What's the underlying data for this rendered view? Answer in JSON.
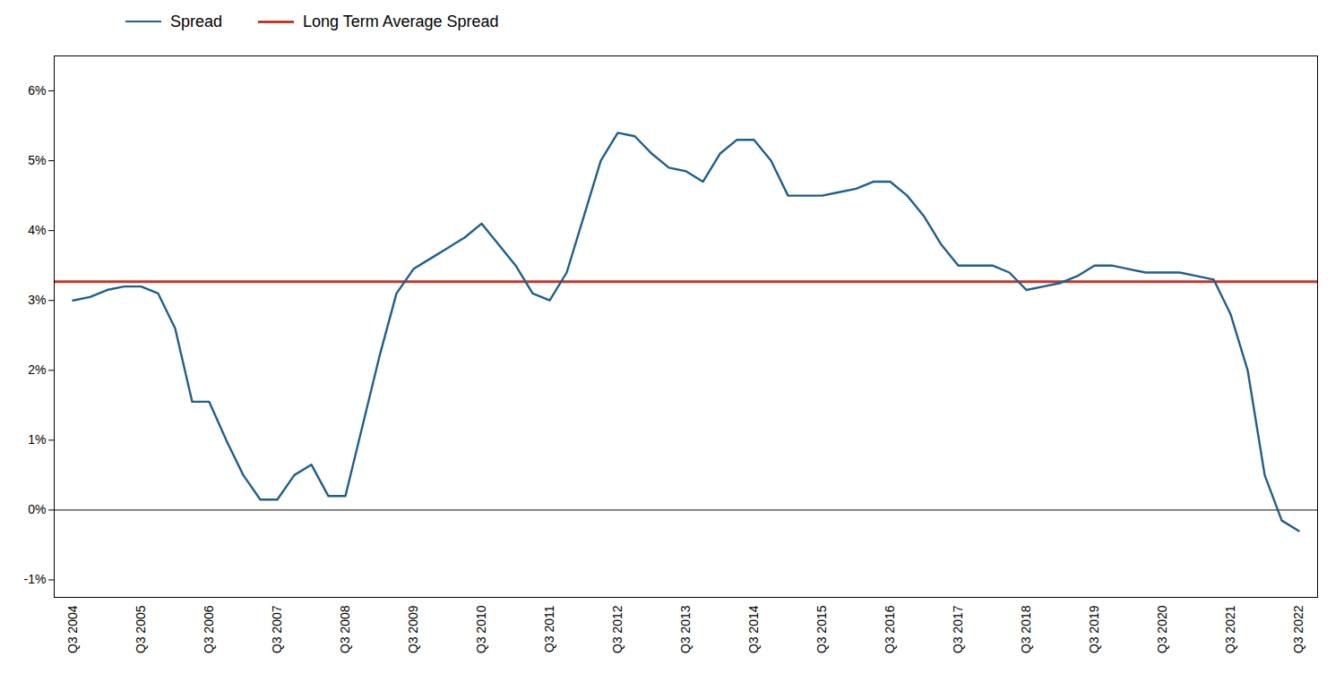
{
  "chart_data": {
    "type": "line",
    "categories": [
      "Q3 2004",
      null,
      null,
      null,
      "Q3 2005",
      null,
      null,
      null,
      "Q3 2006",
      null,
      null,
      null,
      "Q3 2007",
      null,
      null,
      null,
      "Q3 2008",
      null,
      null,
      null,
      "Q3 2009",
      null,
      null,
      null,
      "Q3 2010",
      null,
      null,
      null,
      "Q3 2011",
      null,
      null,
      null,
      "Q3 2012",
      null,
      null,
      null,
      "Q3 2013",
      null,
      null,
      null,
      "Q3 2014",
      null,
      null,
      null,
      "Q3 2015",
      null,
      null,
      null,
      "Q3 2016",
      null,
      null,
      null,
      "Q3 2017",
      null,
      null,
      null,
      "Q3 2018",
      null,
      null,
      null,
      "Q3 2019",
      null,
      null,
      null,
      "Q3 2020",
      null,
      null,
      null,
      "Q3 2021",
      null,
      null,
      null,
      "Q3 2022"
    ],
    "series": [
      {
        "name": "Spread",
        "color": "#1F5F8B",
        "type": "line",
        "values": [
          3.0,
          3.05,
          3.15,
          3.2,
          3.2,
          3.1,
          2.6,
          1.55,
          1.55,
          1.0,
          0.5,
          0.15,
          0.15,
          0.5,
          0.65,
          0.2,
          0.2,
          1.2,
          2.2,
          3.1,
          3.45,
          3.6,
          3.75,
          3.9,
          4.1,
          3.8,
          3.5,
          3.1,
          3.0,
          3.4,
          4.2,
          5.0,
          5.4,
          5.35,
          5.1,
          4.9,
          4.85,
          4.7,
          5.1,
          5.3,
          5.3,
          5.0,
          4.5,
          4.5,
          4.5,
          4.55,
          4.6,
          4.7,
          4.7,
          4.5,
          4.2,
          3.8,
          3.5,
          3.5,
          3.5,
          3.4,
          3.15,
          3.2,
          3.25,
          3.35,
          3.5,
          3.5,
          3.45,
          3.4,
          3.4,
          3.4,
          3.35,
          3.3,
          2.8,
          2.0,
          0.5,
          -0.15,
          -0.3
        ]
      },
      {
        "name": "Long Term Average Spread",
        "color": "#C0392B",
        "type": "hline",
        "value": 3.27
      }
    ],
    "ylim": [
      -1.25,
      6.5
    ],
    "yticks": [
      {
        "value": -1.0,
        "label": "-1%"
      },
      {
        "value": 0.0,
        "label": "0%"
      },
      {
        "value": 1.0,
        "label": "1%"
      },
      {
        "value": 2.0,
        "label": "2%"
      },
      {
        "value": 3.0,
        "label": "3%"
      },
      {
        "value": 4.0,
        "label": "4%"
      },
      {
        "value": 5.0,
        "label": "5%"
      },
      {
        "value": 6.0,
        "label": "6%"
      }
    ],
    "grid": false,
    "legend": "upper left"
  }
}
